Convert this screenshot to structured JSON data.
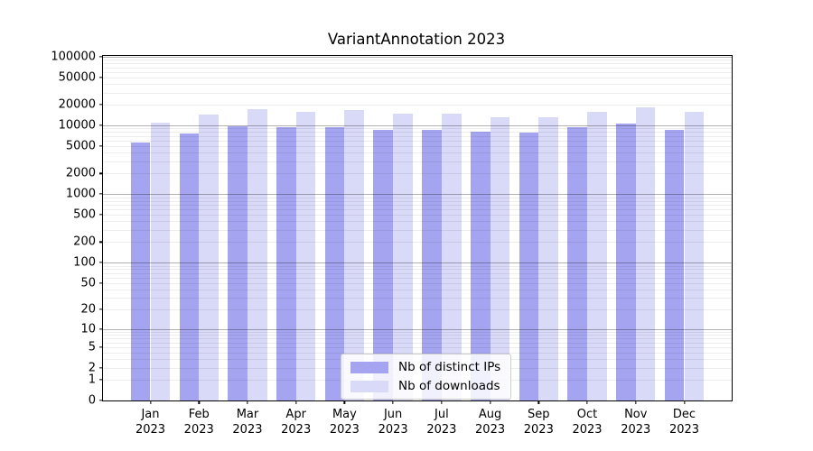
{
  "chart_data": {
    "type": "bar",
    "title": "VariantAnnotation 2023",
    "year_label": "2023",
    "categories": [
      "Jan",
      "Feb",
      "Mar",
      "Apr",
      "May",
      "Jun",
      "Jul",
      "Aug",
      "Sep",
      "Oct",
      "Nov",
      "Dec"
    ],
    "series": [
      {
        "name": "Nb of distinct IPs",
        "color": "#a4a4f0",
        "values": [
          5600,
          7600,
          9600,
          9500,
          9300,
          8700,
          8600,
          8200,
          7800,
          9500,
          10600,
          8700
        ]
      },
      {
        "name": "Nb of downloads",
        "color": "#d9d9f8",
        "values": [
          11000,
          14400,
          17100,
          15700,
          16600,
          15000,
          14700,
          13300,
          13000,
          15700,
          18000,
          15500
        ]
      }
    ],
    "yscale": "log1p",
    "ylim": [
      0,
      100000
    ],
    "y_ticks": [
      0,
      1,
      2,
      5,
      10,
      20,
      50,
      100,
      200,
      500,
      1000,
      2000,
      5000,
      10000,
      20000,
      50000,
      100000
    ],
    "grid": true,
    "grid_major_values": [
      10,
      100,
      1000,
      10000,
      100000
    ],
    "legend_position": "lower center",
    "xlabel": "",
    "ylabel": ""
  },
  "colors": {
    "background": "#ffffff",
    "axis": "#000000",
    "grid_minor": "#ececec",
    "grid_major": "#b3b3b3",
    "legend_border": "#cccccc"
  }
}
